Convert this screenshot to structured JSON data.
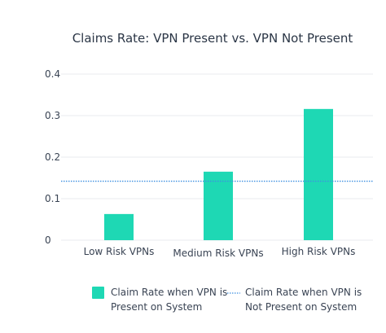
{
  "colors": {
    "bar": "#1ed8b4",
    "line": "#3d8fe0",
    "grid": "#e8ebef",
    "text": "#3a4454"
  },
  "chart_data": {
    "type": "bar",
    "title": "Claims Rate: VPN Present vs. VPN Not Present",
    "xlabel": "",
    "ylabel": "",
    "categories": [
      "Low Risk VPNs",
      "Medium Risk VPNs",
      "High Risk VPNs"
    ],
    "ylim": [
      0,
      0.4
    ],
    "yticks": [
      "0",
      "0.1",
      "0.2",
      "0.3",
      "0.4"
    ],
    "grid": true,
    "legend_position": "bottom",
    "series": [
      {
        "type": "bar",
        "legend_lines": [
          "Claim Rate when VPN is",
          "Present on System"
        ],
        "values": [
          0.063,
          0.165,
          0.316
        ]
      },
      {
        "type": "hline",
        "style": "dotted",
        "legend_lines": [
          "Claim Rate when VPN is",
          "Not Present on System"
        ],
        "value": 0.142
      }
    ]
  }
}
